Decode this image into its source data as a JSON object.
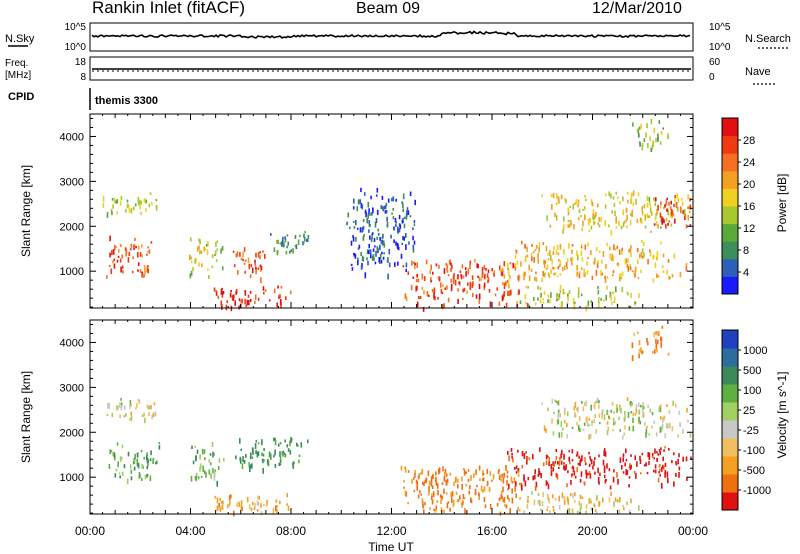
{
  "header": {
    "station": "Rankin Inlet (fitACF)",
    "beam": "Beam 09",
    "date": "12/Mar/2010"
  },
  "strip": {
    "nsky_label": "N.Sky",
    "nsky_top": "10^5",
    "nsky_bottom": "10^0",
    "nsearch_label": "N.Search",
    "nsearch_top": "10^5",
    "nsearch_bottom": "10^0",
    "freq_label": "Freq.",
    "freq_unit": "[MHz]",
    "freq_top": "18",
    "freq_bottom": "8",
    "nave_label": "Nave",
    "nave_top": "60",
    "nave_bottom": "0",
    "cpid_label": "CPID",
    "cpid_value": "themis 3300"
  },
  "panels": {
    "ylabel": "Slant Range [km]",
    "yticks": [
      "1000",
      "2000",
      "3000",
      "4000"
    ],
    "xlabel": "Time UT",
    "xticks": [
      "00:00",
      "04:00",
      "08:00",
      "12:00",
      "16:00",
      "20:00",
      "00:00"
    ]
  },
  "power_colorbar": {
    "label": "Power [dB]",
    "ticks": [
      "4",
      "8",
      "12",
      "16",
      "20",
      "24",
      "28"
    ],
    "colors": [
      "#1a1aff",
      "#2b5fb8",
      "#3a8f5a",
      "#5aaa3a",
      "#a8c830",
      "#f0d020",
      "#f5a020",
      "#f57020",
      "#f03a10",
      "#e01010"
    ]
  },
  "velocity_colorbar": {
    "label": "Velocity [m s^-1]",
    "ticks": [
      "1000",
      "500",
      "100",
      "25",
      "-25",
      "-100",
      "-500",
      "-1000"
    ],
    "colors": [
      "#2040c0",
      "#2a6ea0",
      "#3b8b5a",
      "#5fb040",
      "#a0d060",
      "#c8c8c8",
      "#f0c060",
      "#f5a020",
      "#f07010",
      "#e01010"
    ]
  },
  "chart_data": [
    {
      "type": "line",
      "title": "N.Sky / N.Search",
      "x_range_hours": [
        0,
        24
      ],
      "approx_level": "flat, slight bump near 14:00-16:00"
    },
    {
      "type": "heatmap",
      "title": "Power",
      "x_range_hours": [
        0,
        24
      ],
      "ylim_km": [
        180,
        4500
      ],
      "blobs": [
        {
          "t0": 0.6,
          "t1": 2.6,
          "r0": 900,
          "r1": 1800,
          "level": 0.85
        },
        {
          "t0": 0.4,
          "t1": 2.8,
          "r0": 2300,
          "r1": 2800,
          "level": 0.45
        },
        {
          "t0": 3.9,
          "t1": 5.3,
          "r0": 900,
          "r1": 1800,
          "level": 0.5
        },
        {
          "t0": 5.6,
          "t1": 7.0,
          "r0": 800,
          "r1": 1600,
          "level": 0.85
        },
        {
          "t0": 4.8,
          "t1": 8.0,
          "r0": 200,
          "r1": 700,
          "level": 0.95
        },
        {
          "t0": 7.0,
          "t1": 8.8,
          "r0": 1400,
          "r1": 1900,
          "level": 0.25
        },
        {
          "t0": 12.3,
          "t1": 17.5,
          "r0": 200,
          "r1": 1300,
          "level": 0.85
        },
        {
          "t0": 16.3,
          "t1": 24.0,
          "r0": 800,
          "r1": 1700,
          "level": 0.65
        },
        {
          "t0": 17.8,
          "t1": 24.0,
          "r0": 1900,
          "r1": 2800,
          "level": 0.55
        },
        {
          "t0": 22.3,
          "t1": 24.0,
          "r0": 2000,
          "r1": 2700,
          "level": 0.9
        },
        {
          "t0": 17.0,
          "t1": 22.0,
          "r0": 200,
          "r1": 700,
          "level": 0.45
        },
        {
          "t0": 10.2,
          "t1": 13.0,
          "r0": 900,
          "r1": 2900,
          "level": 0.12
        },
        {
          "t0": 21.5,
          "t1": 23.0,
          "r0": 3700,
          "r1": 4400,
          "level": 0.35
        }
      ]
    },
    {
      "type": "heatmap",
      "title": "Velocity",
      "x_range_hours": [
        0,
        24
      ],
      "ylim_km": [
        180,
        4500
      ],
      "blobs": [
        {
          "t0": 0.6,
          "t1": 2.8,
          "r0": 900,
          "r1": 1800,
          "vel": 200
        },
        {
          "t0": 0.4,
          "t1": 2.8,
          "r0": 2300,
          "r1": 2800,
          "vel": 0
        },
        {
          "t0": 3.9,
          "t1": 5.3,
          "r0": 900,
          "r1": 1800,
          "vel": 150
        },
        {
          "t0": 5.6,
          "t1": 8.8,
          "r0": 1200,
          "r1": 1900,
          "vel": 300
        },
        {
          "t0": 4.8,
          "t1": 8.0,
          "r0": 200,
          "r1": 700,
          "vel": -150
        },
        {
          "t0": 12.3,
          "t1": 17.5,
          "r0": 200,
          "r1": 1300,
          "vel": -300
        },
        {
          "t0": 16.3,
          "t1": 24.0,
          "r0": 800,
          "r1": 1700,
          "vel": -600
        },
        {
          "t0": 17.8,
          "t1": 24.0,
          "r0": 1900,
          "r1": 2800,
          "vel": 0
        },
        {
          "t0": 17.0,
          "t1": 22.0,
          "r0": 200,
          "r1": 700,
          "vel": -60
        },
        {
          "t0": 21.5,
          "t1": 23.0,
          "r0": 3700,
          "r1": 4400,
          "vel": -200
        }
      ]
    }
  ]
}
